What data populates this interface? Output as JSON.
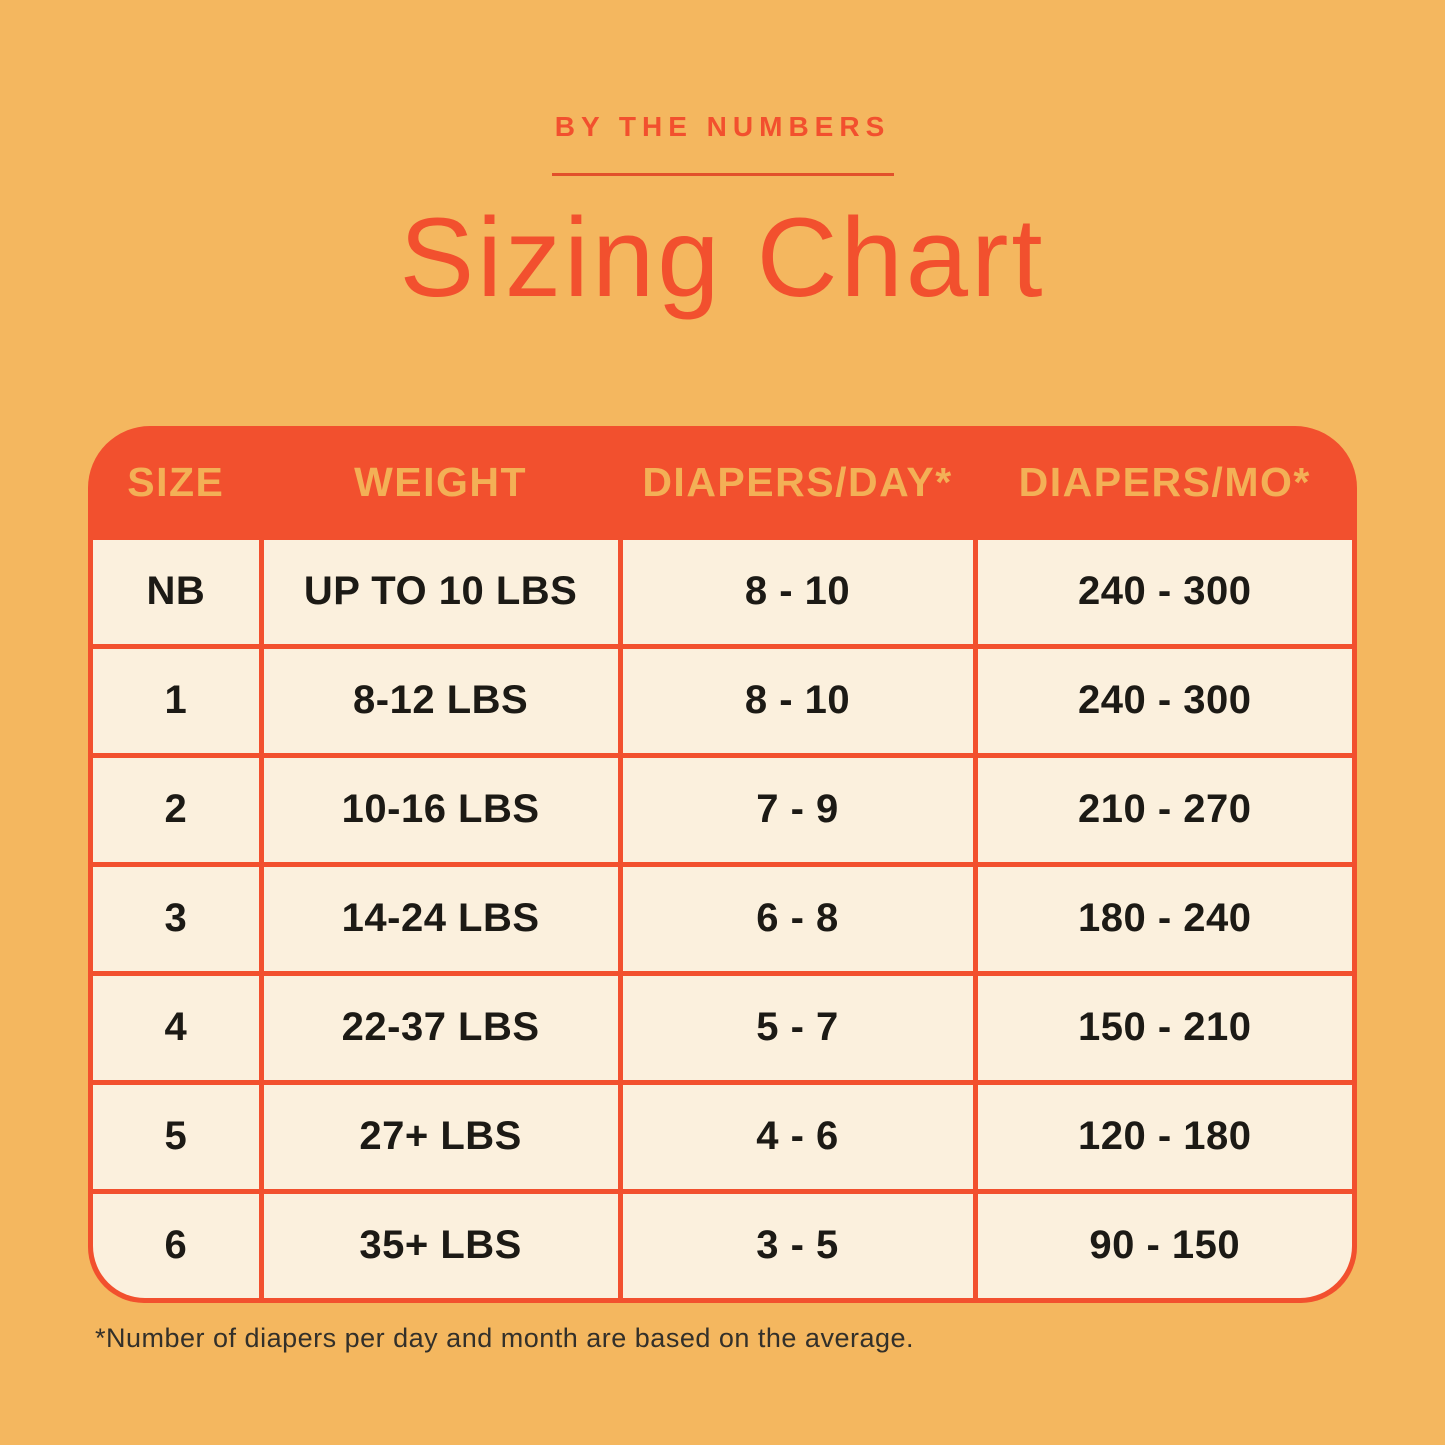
{
  "page": {
    "eyebrow": "BY THE NUMBERS",
    "title": "Sizing Chart",
    "footnote": "*Number of diapers per day and month are based on the average."
  },
  "table": {
    "columns": [
      "SIZE",
      "WEIGHT",
      "DIAPERS/DAY*",
      "DIAPERS/MO*"
    ],
    "rows": [
      {
        "size": "NB",
        "weight": "UP TO 10 LBS",
        "per_day": "8 - 10",
        "per_month": "240 - 300"
      },
      {
        "size": "1",
        "weight": "8-12 LBS",
        "per_day": "8 - 10",
        "per_month": "240 - 300"
      },
      {
        "size": "2",
        "weight": "10-16 LBS",
        "per_day": "7 - 9",
        "per_month": "210 - 270"
      },
      {
        "size": "3",
        "weight": "14-24 LBS",
        "per_day": "6 - 8",
        "per_month": "180 - 240"
      },
      {
        "size": "4",
        "weight": "22-37 LBS",
        "per_day": "5 - 7",
        "per_month": "150 - 210"
      },
      {
        "size": "5",
        "weight": "27+ LBS",
        "per_day": "4 - 6",
        "per_month": "120 - 180"
      },
      {
        "size": "6",
        "weight": "35+ LBS",
        "per_day": "3 - 5",
        "per_month": "90 - 150"
      }
    ]
  },
  "colors": {
    "background": "#F4B75F",
    "accent_red": "#F2502E",
    "cream": "#FBF0DD",
    "header_text_amber": "#F3B056",
    "body_text": "#1C1A15",
    "footnote_text": "#33302A"
  },
  "chart_data": {
    "type": "table",
    "title": "Sizing Chart",
    "subtitle": "BY THE NUMBERS",
    "columns": [
      "SIZE",
      "WEIGHT",
      "DIAPERS/DAY*",
      "DIAPERS/MO*"
    ],
    "rows": [
      [
        "NB",
        "UP TO 10 LBS",
        "8 - 10",
        "240 - 300"
      ],
      [
        "1",
        "8-12 LBS",
        "8 - 10",
        "240 - 300"
      ],
      [
        "2",
        "10-16 LBS",
        "7 - 9",
        "210 - 270"
      ],
      [
        "3",
        "14-24 LBS",
        "6 - 8",
        "180 - 240"
      ],
      [
        "4",
        "22-37 LBS",
        "5 - 7",
        "150 - 210"
      ],
      [
        "5",
        "27+ LBS",
        "4 - 6",
        "120 - 180"
      ],
      [
        "6",
        "35+ LBS",
        "3 - 5",
        "90 - 150"
      ]
    ],
    "footnote": "*Number of diapers per day and month are based on the average.",
    "layout": {
      "grid": true,
      "legend_position": "none"
    }
  }
}
